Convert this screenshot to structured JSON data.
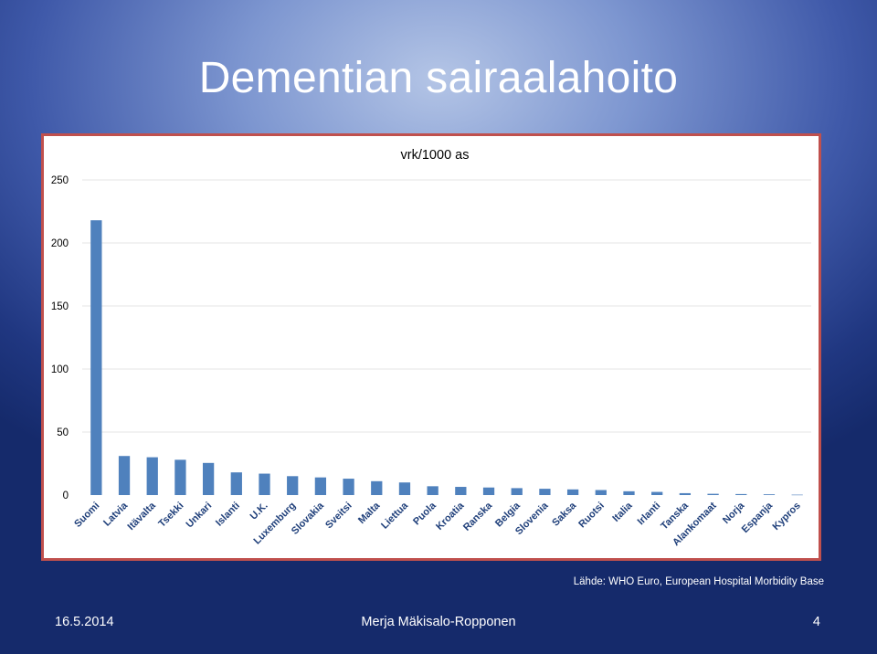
{
  "slide": {
    "title": "Dementian sairaalahoito",
    "source": "Lähde: WHO Euro, European Hospital Morbidity Base",
    "footer": {
      "date": "16.5.2014",
      "author": "Merja Mäkisalo-Ropponen",
      "page": "4"
    }
  },
  "colors": {
    "bar": "#4f81bd",
    "chart_border": "#c0504d",
    "gridline": "#e6e6e6"
  },
  "chart_data": {
    "type": "bar",
    "title": "vrk/1000 as",
    "xlabel": "",
    "ylabel": "",
    "ylim": [
      0,
      250
    ],
    "yticks": [
      0,
      50,
      100,
      150,
      200,
      250
    ],
    "grid": true,
    "legend": "none",
    "categories": [
      "Suomi",
      "Latvia",
      "Itävalta",
      "Tsekki",
      "Unkari",
      "Islanti",
      "U.K.",
      "Luxemburg",
      "Slovakia",
      "Sveitsi",
      "Malta",
      "Liettua",
      "Puola",
      "Kroatia",
      "Ranska",
      "Belgia",
      "Slovenia",
      "Saksa",
      "Ruotsi",
      "Italia",
      "Irlanti",
      "Tanska",
      "Alankomaat",
      "Norja",
      "Espanja",
      "Kypros"
    ],
    "values": [
      218,
      31,
      30,
      28,
      25.5,
      18,
      17,
      15,
      14,
      13,
      11,
      10,
      7,
      6.5,
      6,
      5.5,
      5,
      4.5,
      4,
      3,
      2.5,
      1.5,
      1,
      0.8,
      0.6,
      0.3
    ]
  }
}
